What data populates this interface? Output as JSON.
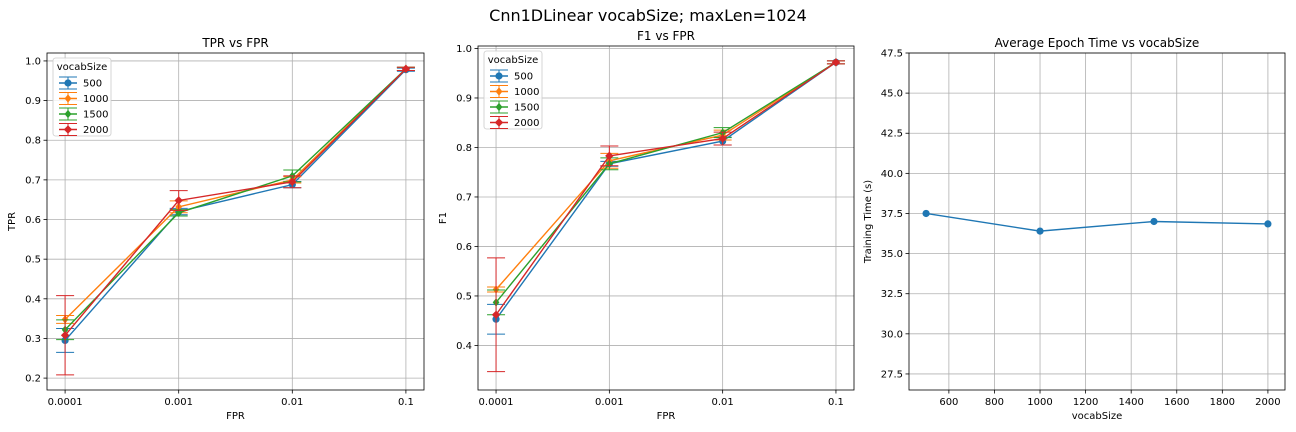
{
  "figure": {
    "title": "Cnn1DLinear vocabSize; maxLen=1024"
  },
  "colors": {
    "500": "#1f77b4",
    "1000": "#ff7f0e",
    "1500": "#2ca02c",
    "2000": "#d62728"
  },
  "chart_data": [
    {
      "type": "line",
      "title": "TPR vs FPR",
      "xlabel": "FPR",
      "ylabel": "TPR",
      "categories": [
        "0.0001",
        "0.001",
        "0.01",
        "0.1"
      ],
      "ylim": [
        0.17,
        1.02
      ],
      "yticks": [
        "0.2",
        "0.3",
        "0.4",
        "0.5",
        "0.6",
        "0.7",
        "0.8",
        "0.9",
        "1.0"
      ],
      "grid": true,
      "legend": {
        "title": "vocabSize",
        "placement": "top-left"
      },
      "series": [
        {
          "name": "500",
          "values": [
            0.295,
            0.62,
            0.688,
            0.978
          ],
          "err": [
            0.03,
            0.008,
            0.008,
            0.004
          ]
        },
        {
          "name": "1000",
          "values": [
            0.348,
            0.632,
            0.7,
            0.98
          ],
          "err": [
            0.01,
            0.015,
            0.008,
            0.004
          ]
        },
        {
          "name": "1500",
          "values": [
            0.322,
            0.617,
            0.71,
            0.98
          ],
          "err": [
            0.025,
            0.008,
            0.015,
            0.004
          ]
        },
        {
          "name": "2000",
          "values": [
            0.308,
            0.648,
            0.695,
            0.98
          ],
          "err": [
            0.1,
            0.025,
            0.015,
            0.004
          ]
        }
      ]
    },
    {
      "type": "line",
      "title": "F1 vs FPR",
      "xlabel": "FPR",
      "ylabel": "F1",
      "categories": [
        "0.0001",
        "0.001",
        "0.01",
        "0.1"
      ],
      "ylim": [
        0.31,
        1.005
      ],
      "yticks": [
        "0.4",
        "0.5",
        "0.6",
        "0.7",
        "0.8",
        "0.9",
        "1.0"
      ],
      "grid": true,
      "legend": {
        "title": "vocabSize",
        "placement": "top-left"
      },
      "series": [
        {
          "name": "500",
          "values": [
            0.453,
            0.767,
            0.813,
            0.972
          ],
          "err": [
            0.03,
            0.005,
            0.008,
            0.003
          ]
        },
        {
          "name": "1000",
          "values": [
            0.513,
            0.773,
            0.825,
            0.972
          ],
          "err": [
            0.005,
            0.015,
            0.01,
            0.003
          ]
        },
        {
          "name": "1500",
          "values": [
            0.487,
            0.767,
            0.83,
            0.972
          ],
          "err": [
            0.025,
            0.012,
            0.01,
            0.003
          ]
        },
        {
          "name": "2000",
          "values": [
            0.462,
            0.783,
            0.818,
            0.972
          ],
          "err": [
            0.115,
            0.02,
            0.013,
            0.003
          ]
        }
      ]
    },
    {
      "type": "line",
      "title": "Average Epoch Time vs vocabSize",
      "xlabel": "vocabSize",
      "ylabel": "Training Time (s)",
      "x": [
        500,
        1000,
        1500,
        2000
      ],
      "values": [
        37.5,
        36.4,
        37.0,
        36.85
      ],
      "xlim": [
        425,
        2075
      ],
      "ylim": [
        26.5,
        47.5
      ],
      "xticks": [
        "600",
        "800",
        "1000",
        "1200",
        "1400",
        "1600",
        "1800",
        "2000"
      ],
      "yticks": [
        "27.5",
        "30.0",
        "32.5",
        "35.0",
        "37.5",
        "40.0",
        "42.5",
        "45.0",
        "47.5"
      ],
      "grid": true,
      "series_color": "#1f77b4"
    }
  ]
}
